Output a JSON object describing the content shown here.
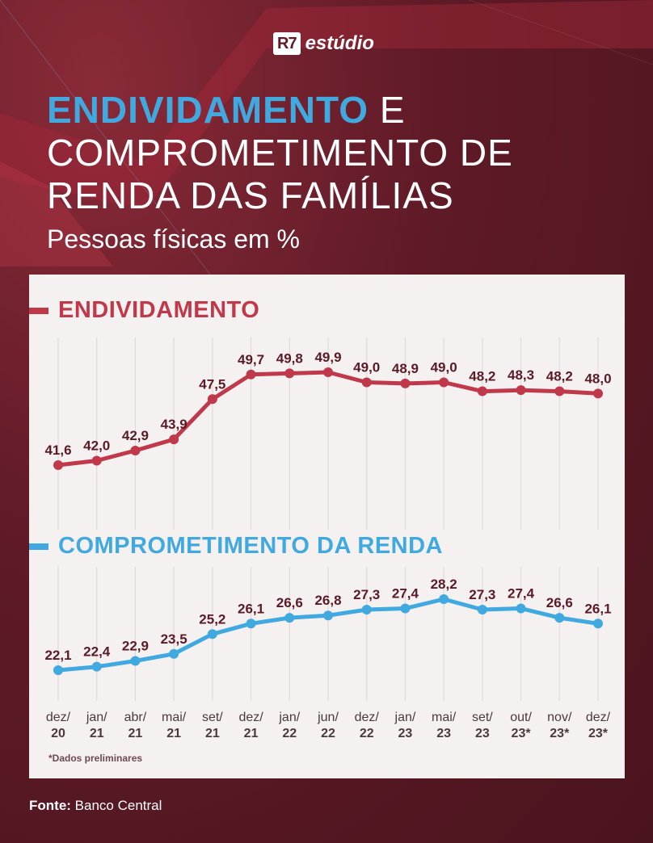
{
  "brand": {
    "logo": "R7",
    "name": "estúdio"
  },
  "title": {
    "highlight": "ENDIVIDAMENTO",
    "rest": " E COMPROMETIMENTO DE RENDA DAS FAMÍLIAS"
  },
  "subtitle": "Pessoas físicas em %",
  "footnote": "*Dados preliminares",
  "source": {
    "label": "Fonte:",
    "value": " Banco Central"
  },
  "colors": {
    "endividamento": "#c0394a",
    "comprometimento": "#3fa9e0",
    "value_text": "#5a1a26",
    "grid": "#dcd6d6"
  },
  "chart_data": [
    {
      "type": "line",
      "title": "ENDIVIDAMENTO",
      "categories": [
        "dez/20",
        "jan/21",
        "abr/21",
        "mai/21",
        "set/21",
        "dez/21",
        "jan/22",
        "jun/22",
        "dez/22",
        "jan/23",
        "mai/23",
        "set/23",
        "out/23*",
        "nov/23*",
        "dez/23*"
      ],
      "values": [
        41.6,
        42.0,
        42.9,
        43.9,
        47.5,
        49.7,
        49.8,
        49.9,
        49.0,
        48.9,
        49.0,
        48.2,
        48.3,
        48.2,
        48.0
      ],
      "labels": [
        "41,6",
        "42,0",
        "42,9",
        "43,9",
        "47,5",
        "49,7",
        "49,8",
        "49,9",
        "49,0",
        "48,9",
        "49,0",
        "48,2",
        "48,3",
        "48,2",
        "48,0"
      ],
      "color": "#c0394a",
      "grid": true
    },
    {
      "type": "line",
      "title": "COMPROMETIMENTO DA RENDA",
      "categories": [
        "dez/20",
        "jan/21",
        "abr/21",
        "mai/21",
        "set/21",
        "dez/21",
        "jan/22",
        "jun/22",
        "dez/22",
        "jan/23",
        "mai/23",
        "set/23",
        "out/23*",
        "nov/23*",
        "dez/23*"
      ],
      "values": [
        22.1,
        22.4,
        22.9,
        23.5,
        25.2,
        26.1,
        26.6,
        26.8,
        27.3,
        27.4,
        28.2,
        27.3,
        27.4,
        26.6,
        26.1
      ],
      "labels": [
        "22,1",
        "22,4",
        "22,9",
        "23,5",
        "25,2",
        "26,1",
        "26,6",
        "26,8",
        "27,3",
        "27,4",
        "28,2",
        "27,3",
        "27,4",
        "26,6",
        "26,1"
      ],
      "color": "#3fa9e0",
      "grid": true
    }
  ],
  "x_ticks": [
    {
      "top": "dez/",
      "bottom": "20"
    },
    {
      "top": "jan/",
      "bottom": "21"
    },
    {
      "top": "abr/",
      "bottom": "21"
    },
    {
      "top": "mai/",
      "bottom": "21"
    },
    {
      "top": "set/",
      "bottom": "21"
    },
    {
      "top": "dez/",
      "bottom": "21"
    },
    {
      "top": "jan/",
      "bottom": "22"
    },
    {
      "top": "jun/",
      "bottom": "22"
    },
    {
      "top": "dez/",
      "bottom": "22"
    },
    {
      "top": "jan/",
      "bottom": "23"
    },
    {
      "top": "mai/",
      "bottom": "23"
    },
    {
      "top": "set/",
      "bottom": "23"
    },
    {
      "top": "out/",
      "bottom": "23*"
    },
    {
      "top": "nov/",
      "bottom": "23*"
    },
    {
      "top": "dez/",
      "bottom": "23*"
    }
  ]
}
